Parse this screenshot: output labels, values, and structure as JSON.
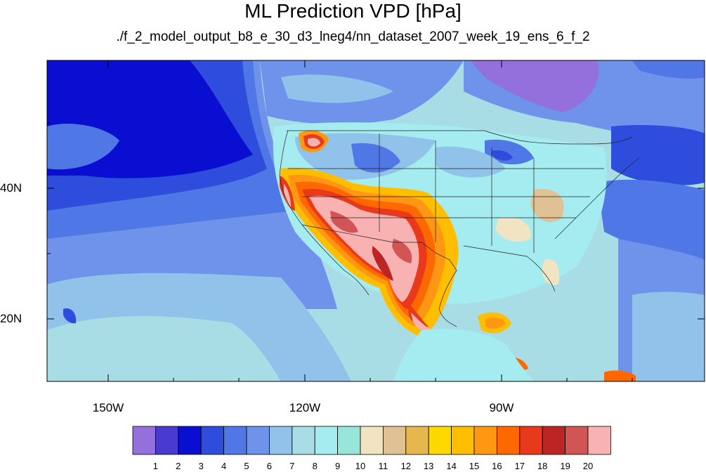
{
  "title": "ML Prediction VPD [hPa]",
  "subtitle": "./f_2_model_output_b8_e_30_d3_lneg4/nn_dataset_2007_week_19_ens_6_f_2",
  "lon_labels": [
    "150W",
    "120W",
    "90W"
  ],
  "lat_labels": [
    "40N",
    "20N"
  ],
  "colorbar": {
    "labels": [
      "1",
      "2",
      "3",
      "4",
      "5",
      "6",
      "7",
      "8",
      "9",
      "10",
      "11",
      "12",
      "13",
      "14",
      "15",
      "16",
      "17",
      "18",
      "19",
      "20"
    ],
    "colors": [
      "#9370db",
      "#4a3bd0",
      "#0a0ed0",
      "#2e4ddc",
      "#4f77e6",
      "#6f93ea",
      "#90c2ea",
      "#a8dde5",
      "#a4ecf0",
      "#98e6da",
      "#f0e4c2",
      "#dfc193",
      "#e6b74f",
      "#ffd800",
      "#ffbf00",
      "#ff9614",
      "#ff6800",
      "#e83a1a",
      "#bd2424",
      "#d25555",
      "#f8b2b2"
    ]
  }
}
